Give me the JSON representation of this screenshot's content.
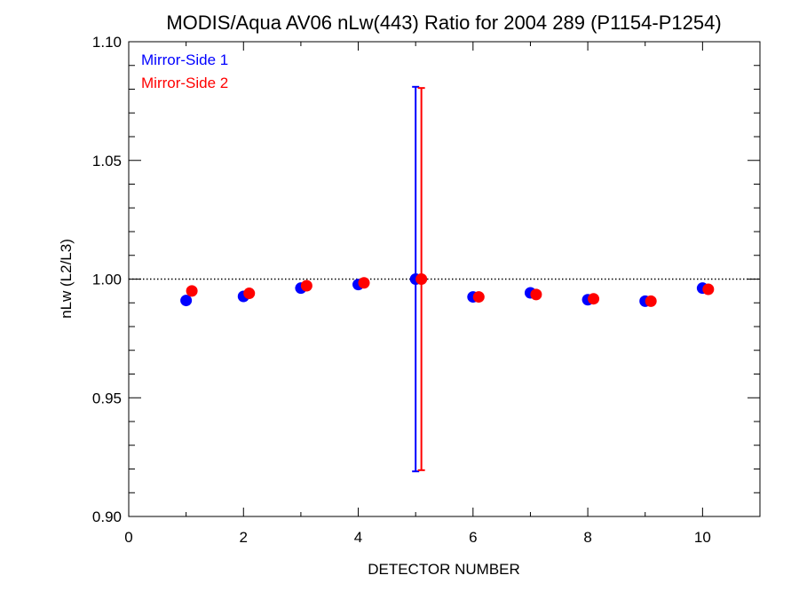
{
  "chart_data": {
    "type": "scatter",
    "title": "MODIS/Aqua AV06 nLw(443) Ratio for 2004 289 (P1154-P1254)",
    "xlabel": "DETECTOR NUMBER",
    "ylabel": "nLw (L2/L3)",
    "xlim": [
      0,
      11
    ],
    "ylim": [
      0.9,
      1.1
    ],
    "x_ticks": [
      0,
      2,
      4,
      6,
      8,
      10
    ],
    "y_ticks": [
      0.9,
      0.95,
      1.0,
      1.05,
      1.1
    ],
    "x_tick_labels": [
      "0",
      "2",
      "4",
      "6",
      "8",
      "10"
    ],
    "y_tick_labels": [
      "0.90",
      "0.95",
      "1.00",
      "1.05",
      "1.10"
    ],
    "reference_line": {
      "y": 1.0,
      "style": "dotted"
    },
    "legend_position": "top-left",
    "series": [
      {
        "name": "Mirror-Side 1",
        "color": "#0000ff",
        "points": [
          {
            "x": 1,
            "y": 0.991
          },
          {
            "x": 2,
            "y": 0.9927
          },
          {
            "x": 3,
            "y": 0.9962
          },
          {
            "x": 4,
            "y": 0.9977
          },
          {
            "x": 5,
            "y": 1.0,
            "err_low": 0.919,
            "err_high": 1.081
          },
          {
            "x": 6,
            "y": 0.9925
          },
          {
            "x": 7,
            "y": 0.9942
          },
          {
            "x": 8,
            "y": 0.9913
          },
          {
            "x": 9,
            "y": 0.9907
          },
          {
            "x": 10,
            "y": 0.9962
          }
        ]
      },
      {
        "name": "Mirror-Side 2",
        "color": "#ff0000",
        "points": [
          {
            "x": 1.1,
            "y": 0.995
          },
          {
            "x": 2.1,
            "y": 0.994
          },
          {
            "x": 3.1,
            "y": 0.9972
          },
          {
            "x": 4.1,
            "y": 0.9984
          },
          {
            "x": 5.1,
            "y": 1.0,
            "err_low": 0.9195,
            "err_high": 1.0805
          },
          {
            "x": 6.1,
            "y": 0.9925
          },
          {
            "x": 7.1,
            "y": 0.9935
          },
          {
            "x": 8.1,
            "y": 0.9917
          },
          {
            "x": 9.1,
            "y": 0.9907
          },
          {
            "x": 10.1,
            "y": 0.9957
          }
        ]
      }
    ]
  }
}
